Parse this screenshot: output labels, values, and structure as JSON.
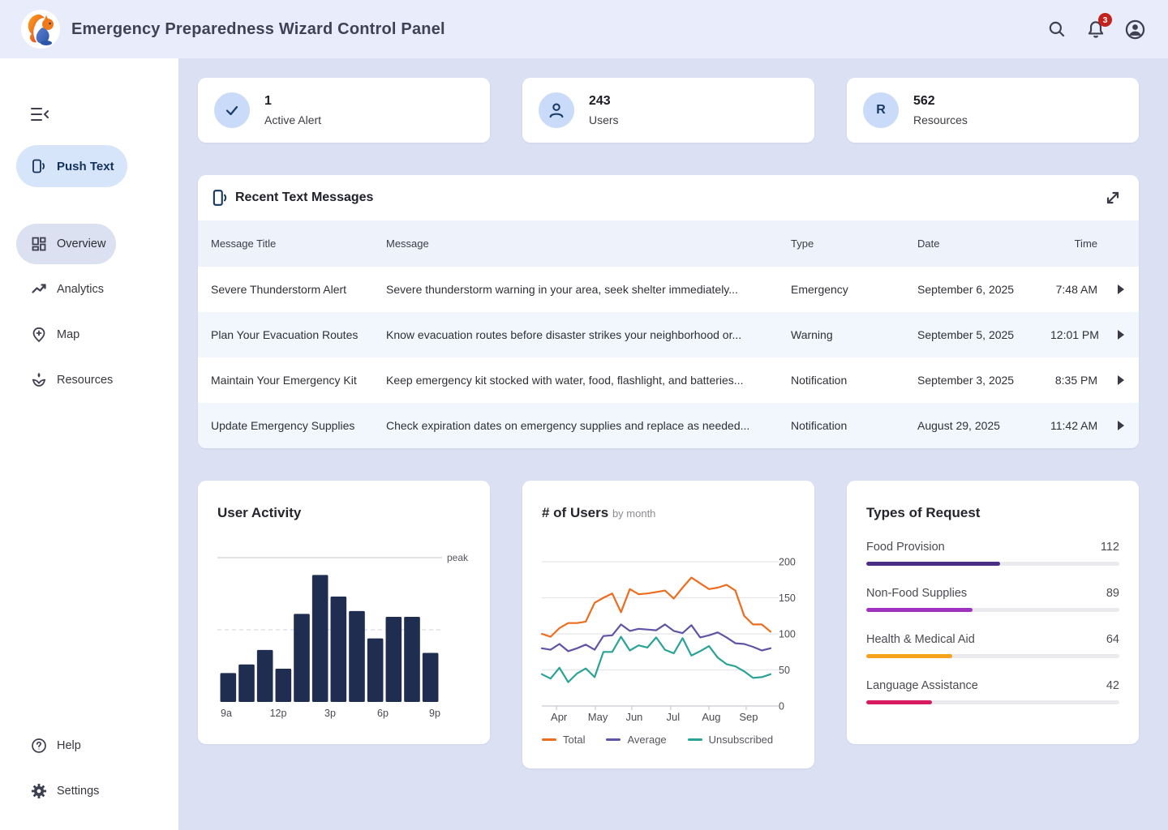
{
  "header": {
    "title": "Emergency Preparedness Wizard Control Panel",
    "notification_badge": "3"
  },
  "sidebar": {
    "push_button": {
      "label": "Push Text",
      "icon": "phone-broadcast-icon"
    },
    "items": [
      {
        "label": "Overview",
        "icon": "dashboard-icon",
        "active": true
      },
      {
        "label": "Analytics",
        "icon": "line-chart-icon",
        "active": false
      },
      {
        "label": "Map",
        "icon": "map-pin-icon",
        "active": false
      },
      {
        "label": "Resources",
        "icon": "sprout-icon",
        "active": false
      }
    ],
    "footer_items": [
      {
        "label": "Help",
        "icon": "help-icon"
      },
      {
        "label": "Settings",
        "icon": "gear-icon"
      }
    ]
  },
  "stats": [
    {
      "value": "1",
      "label": "Active Alert",
      "icon": "check-icon"
    },
    {
      "value": "243",
      "label": "Users",
      "icon": "user-icon"
    },
    {
      "value": "562",
      "label": "Resources",
      "icon": "letter-r-icon"
    }
  ],
  "messages": {
    "title": "Recent Text Messages",
    "columns": [
      "Message Title",
      "Message",
      "Type",
      "Date",
      "Time"
    ],
    "rows": [
      {
        "title": "Severe Thunderstorm Alert",
        "message": "Severe thunderstorm warning in your area, seek shelter immediately...",
        "type": "Emergency",
        "date": "September 6, 2025",
        "time": "7:48 AM"
      },
      {
        "title": "Plan Your Evacuation Routes",
        "message": "Know evacuation routes before disaster strikes your neighborhood or...",
        "type": "Warning",
        "date": "September 5, 2025",
        "time": "12:01 PM"
      },
      {
        "title": "Maintain Your Emergency Kit",
        "message": "Keep emergency kit stocked with water, food, flashlight, and batteries...",
        "type": "Notification",
        "date": "September 3, 2025",
        "time": "8:35 PM"
      },
      {
        "title": "Update Emergency Supplies",
        "message": "Check expiration dates on emergency supplies and replace as needed...",
        "type": "Notification",
        "date": "August 29, 2025",
        "time": "11:42 AM"
      }
    ]
  },
  "chart_data": [
    {
      "type": "bar",
      "title": "User Activity",
      "x_axis_labels": [
        "9a",
        "12p",
        "3p",
        "6p",
        "9p"
      ],
      "values": [
        20,
        26,
        36,
        23,
        61,
        88,
        73,
        63,
        44,
        59,
        59,
        34
      ],
      "ylim": [
        0,
        100
      ],
      "bar_color": "#1f2d50",
      "annotations": {
        "peak_line_at": 100,
        "peak_label": "peak",
        "dashed_line_at": 50
      }
    },
    {
      "type": "line",
      "title": "# of Users",
      "subtitle": "by month",
      "x_tick_labels": [
        "Apr",
        "May",
        "Jun",
        "Jul",
        "Aug",
        "Sep"
      ],
      "yticks": [
        0,
        50,
        100,
        150,
        200
      ],
      "ylim": [
        0,
        200
      ],
      "grid": true,
      "legend_position": "bottom",
      "series": [
        {
          "name": "Total",
          "color": "#ed6c1d",
          "values": [
            100,
            96,
            108,
            115,
            115,
            117,
            143,
            150,
            156,
            130,
            162,
            155,
            156,
            158,
            160,
            149,
            164,
            178,
            170,
            162,
            164,
            168,
            160,
            125,
            113,
            113,
            103
          ]
        },
        {
          "name": "Average",
          "color": "#5f55a5",
          "values": [
            80,
            78,
            86,
            76,
            80,
            85,
            78,
            97,
            98,
            113,
            104,
            107,
            106,
            105,
            113,
            104,
            101,
            112,
            95,
            98,
            102,
            95,
            87,
            86,
            82,
            77,
            80
          ]
        },
        {
          "name": "Unsubscribed",
          "color": "#2aa396",
          "values": [
            44,
            38,
            53,
            33,
            45,
            52,
            40,
            75,
            75,
            96,
            77,
            84,
            81,
            95,
            78,
            73,
            94,
            70,
            76,
            83,
            67,
            58,
            55,
            48,
            39,
            40,
            44
          ]
        }
      ]
    },
    {
      "type": "bar",
      "title": "Types of Request",
      "orientation": "horizontal-progress",
      "items": [
        {
          "label": "Food Provision",
          "value": 112,
          "pct": 53,
          "color": "#4b2e84"
        },
        {
          "label": "Non-Food Supplies",
          "value": 89,
          "pct": 42,
          "color": "#a032c0"
        },
        {
          "label": "Health & Medical Aid",
          "value": 64,
          "pct": 34,
          "color": "#f8a11d"
        },
        {
          "label": "Language Assistance",
          "value": 42,
          "pct": 26,
          "color": "#d81b60"
        }
      ]
    }
  ]
}
